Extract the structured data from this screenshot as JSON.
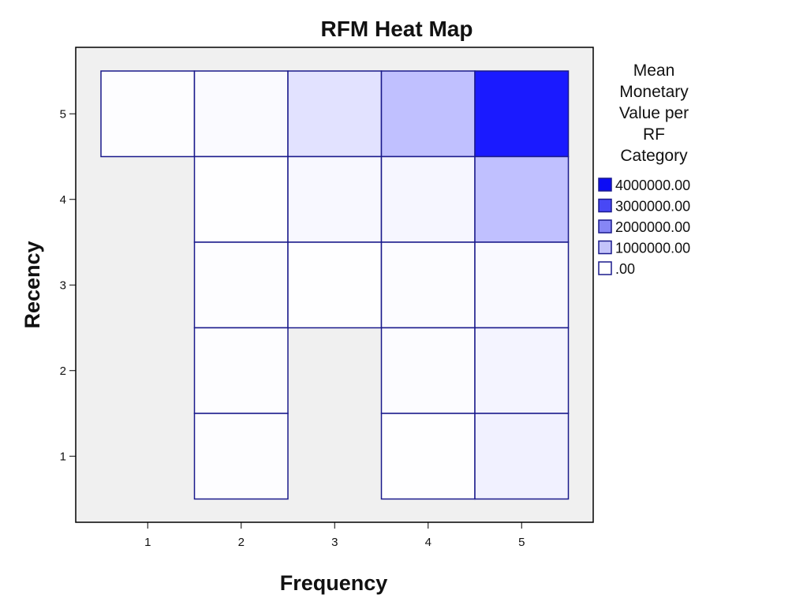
{
  "chart_data": {
    "type": "heatmap",
    "title": "RFM Heat Map",
    "xlabel": "Frequency",
    "ylabel": "Recency",
    "x_categories": [
      "1",
      "2",
      "3",
      "4",
      "5"
    ],
    "y_categories": [
      "1",
      "2",
      "3",
      "4",
      "5"
    ],
    "cells": [
      {
        "x": 1,
        "y": 5,
        "value": 30000
      },
      {
        "x": 2,
        "y": 5,
        "value": 80000
      },
      {
        "x": 3,
        "y": 5,
        "value": 500000
      },
      {
        "x": 4,
        "y": 5,
        "value": 1100000
      },
      {
        "x": 5,
        "y": 5,
        "value": 4000000
      },
      {
        "x": 2,
        "y": 4,
        "value": 20000
      },
      {
        "x": 3,
        "y": 4,
        "value": 120000
      },
      {
        "x": 4,
        "y": 4,
        "value": 150000
      },
      {
        "x": 5,
        "y": 4,
        "value": 1100000
      },
      {
        "x": 2,
        "y": 3,
        "value": 40000
      },
      {
        "x": 3,
        "y": 3,
        "value": 20000
      },
      {
        "x": 4,
        "y": 3,
        "value": 60000
      },
      {
        "x": 5,
        "y": 3,
        "value": 100000
      },
      {
        "x": 2,
        "y": 2,
        "value": 30000
      },
      {
        "x": 4,
        "y": 2,
        "value": 60000
      },
      {
        "x": 5,
        "y": 2,
        "value": 200000
      },
      {
        "x": 2,
        "y": 1,
        "value": 30000
      },
      {
        "x": 4,
        "y": 1,
        "value": 20000
      },
      {
        "x": 5,
        "y": 1,
        "value": 250000
      }
    ],
    "color_scale": {
      "min_value": 0,
      "max_value": 4000000,
      "min_color": "#ffffff",
      "max_color": "#1a1aff"
    },
    "legend": {
      "title_lines": [
        "Mean",
        "Monetary",
        "Value per",
        "RF",
        "Category"
      ],
      "entries": [
        {
          "label": "4000000.00",
          "color": "#0c0cf5"
        },
        {
          "label": "3000000.00",
          "color": "#4848f5"
        },
        {
          "label": "2000000.00",
          "color": "#8686f5"
        },
        {
          "label": "1000000.00",
          "color": "#c4c4fa"
        },
        {
          "label": ".00",
          "color": "#ffffff"
        }
      ],
      "position": "right"
    },
    "grid": false,
    "background_color": "#f0f0f0",
    "cell_border_color": "#1a1a8c"
  }
}
